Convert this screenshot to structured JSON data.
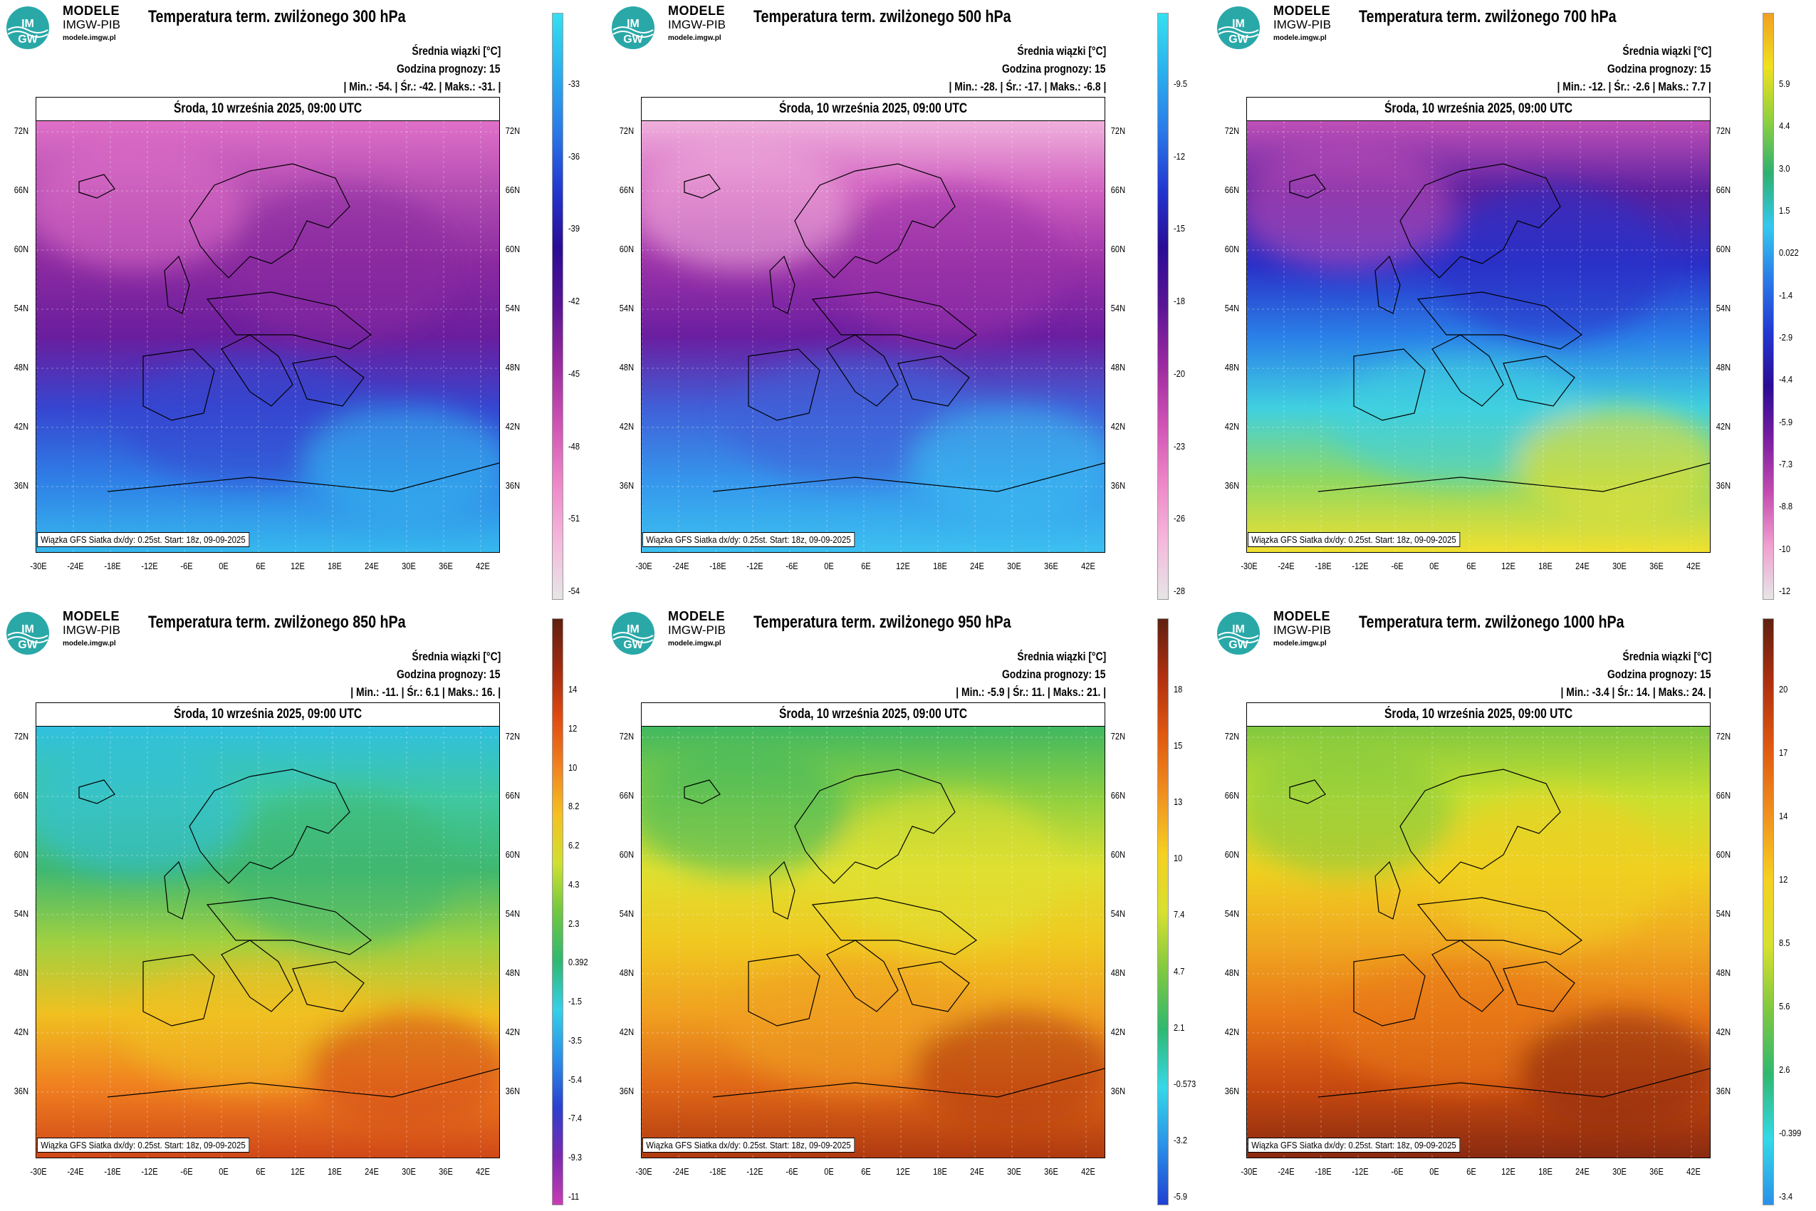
{
  "brand": {
    "line1": "MODELE",
    "line2": "IMGW-PIB",
    "line3": "modele.imgw.pl",
    "logo_text": "IM GW"
  },
  "common": {
    "avg_label": "Średnia wiązki [°C]",
    "forecast_hour": "Godzina prognozy: 15",
    "date_label": "Środa, 10 września 2025, 09:00 UTC",
    "footer": "Wiązka GFS Siatka dx/dy: 0.25st. Start: 18z, 09-09-2025",
    "lat_labels": [
      "72N",
      "66N",
      "60N",
      "54N",
      "48N",
      "42N",
      "36N"
    ],
    "lon_labels": [
      "-30E",
      "-24E",
      "-18E",
      "-12E",
      "-6E",
      "0E",
      "6E",
      "12E",
      "18E",
      "24E",
      "30E",
      "36E",
      "42E"
    ]
  },
  "panels": [
    {
      "title": "Temperatura term. zwilżonego 300 hPa",
      "stats": "| Min.:   -54. | Śr.:   -42. | Maks.:   -31. |",
      "colorbar": {
        "colors": [
          "#e6e6e6",
          "#f5b8dc",
          "#ee86c8",
          "#cf52b4",
          "#9b2aa0",
          "#5a1595",
          "#2a0c95",
          "#2238d0",
          "#2a7ae8",
          "#2bb0ee",
          "#35e0f0"
        ],
        "ticks": [
          "-33",
          "-36",
          "-39",
          "-42",
          "-45",
          "-48",
          "-51",
          "-54"
        ]
      },
      "map_colors": [
        "#e070c8",
        "#b24cb2",
        "#8a2aa0",
        "#6a1e9e",
        "#3646d0",
        "#2f7fe6",
        "#36b8ee"
      ]
    },
    {
      "title": "Temperatura term. zwilżonego 500 hPa",
      "stats": "| Min.:   -28. | Śr.:   -17. | Maks.:   -6.8 |",
      "colorbar": {
        "colors": [
          "#e6e6e6",
          "#f5b8dc",
          "#ee86c8",
          "#cf52b4",
          "#9b2aa0",
          "#5a1595",
          "#2a0c95",
          "#2238d0",
          "#2a7ae8",
          "#2bb0ee",
          "#35e0f0"
        ],
        "ticks": [
          "-9.5",
          "-12",
          "-15",
          "-18",
          "-20",
          "-23",
          "-26",
          "-28"
        ]
      },
      "map_colors": [
        "#f0b0dc",
        "#d060c0",
        "#9a32a8",
        "#6a1ea0",
        "#4060d8",
        "#3596ec",
        "#3cc0f0"
      ]
    },
    {
      "title": "Temperatura term. zwilżonego 700 hPa",
      "stats": "| Min.:   -12. | Śr.:   -2.6 | Maks.:   7.7 |",
      "colorbar": {
        "colors": [
          "#e6e6e6",
          "#f0a0d0",
          "#c44cb0",
          "#7a1ea0",
          "#2a0c95",
          "#2238d0",
          "#2a7ae8",
          "#35c8ee",
          "#2fb070",
          "#90d040",
          "#f0e020",
          "#f0a020"
        ],
        "ticks": [
          "5.9",
          "4.4",
          "3.0",
          "1.5",
          "0.022",
          "-1.4",
          "-2.9",
          "-4.4",
          "-5.9",
          "-7.3",
          "-8.8",
          "-10",
          "-12"
        ]
      },
      "map_colors": [
        "#c050b8",
        "#5a20a0",
        "#2a30c8",
        "#2a80e8",
        "#40d0e0",
        "#90d860",
        "#f0e030"
      ]
    },
    {
      "title": "Temperatura term. zwilżonego 850 hPa",
      "stats": "| Min.:   -11. | Śr.:   6.1 | Maks.:   16. |",
      "colorbar": {
        "colors": [
          "#c83cb4",
          "#7a2ab0",
          "#2a40d0",
          "#2a90e8",
          "#35d0e8",
          "#30b870",
          "#70c840",
          "#d0e030",
          "#f5c020",
          "#f08020",
          "#e04a10",
          "#a02a10",
          "#602010"
        ],
        "ticks": [
          "14",
          "12",
          "10",
          "8.2",
          "6.2",
          "4.3",
          "2.3",
          "0.392",
          "-1.5",
          "-3.5",
          "-5.4",
          "-7.4",
          "-9.3",
          "-11"
        ]
      },
      "map_colors": [
        "#30c0e0",
        "#40c8a0",
        "#40b870",
        "#a0d040",
        "#f0c020",
        "#f08020",
        "#d04818"
      ]
    },
    {
      "title": "Temperatura term. zwilżonego 950 hPa",
      "stats": "| Min.:   -5.9 | Śr.:   11. | Maks.:   21. |",
      "colorbar": {
        "colors": [
          "#2040d0",
          "#2a90e8",
          "#35d8e8",
          "#30b870",
          "#80c840",
          "#d8e030",
          "#f5d020",
          "#f09020",
          "#e05a10",
          "#b03010",
          "#602010"
        ],
        "ticks": [
          "18",
          "15",
          "13",
          "10",
          "7.4",
          "4.7",
          "2.1",
          "-0.573",
          "-3.2",
          "-5.9"
        ]
      },
      "map_colors": [
        "#40b860",
        "#90d040",
        "#e0e030",
        "#f0c820",
        "#f0a020",
        "#e06818",
        "#b03a10"
      ]
    },
    {
      "title": "Temperatura term. zwilżonego 1000 hPa",
      "stats": "| Min.:   -3.4 | Śr.:   14. | Maks.:   24. |",
      "colorbar": {
        "colors": [
          "#2a90e8",
          "#35d8e8",
          "#30b870",
          "#80c840",
          "#d8e030",
          "#f5d020",
          "#f09020",
          "#e05a10",
          "#b03010",
          "#602010"
        ],
        "ticks": [
          "20",
          "17",
          "14",
          "12",
          "8.5",
          "5.6",
          "2.6",
          "-0.399",
          "-3.4"
        ]
      },
      "map_colors": [
        "#80c840",
        "#c8e030",
        "#f0d020",
        "#f0a820",
        "#e87818",
        "#c84a10",
        "#8a2a10"
      ]
    }
  ]
}
